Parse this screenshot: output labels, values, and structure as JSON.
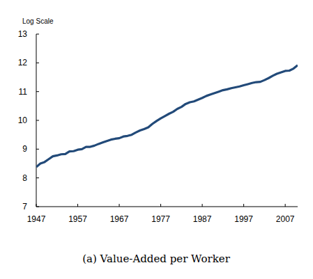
{
  "chart_data": {
    "type": "line",
    "title": "(a) Value-Added per Worker",
    "y_label": "Log Scale",
    "x": [
      1947,
      1948,
      1949,
      1950,
      1951,
      1952,
      1953,
      1954,
      1955,
      1956,
      1957,
      1958,
      1959,
      1960,
      1961,
      1962,
      1963,
      1964,
      1965,
      1966,
      1967,
      1968,
      1969,
      1970,
      1971,
      1972,
      1973,
      1974,
      1975,
      1976,
      1977,
      1978,
      1979,
      1980,
      1981,
      1982,
      1983,
      1984,
      1985,
      1986,
      1987,
      1988,
      1989,
      1990,
      1991,
      1992,
      1993,
      1994,
      1995,
      1996,
      1997,
      1998,
      1999,
      2000,
      2001,
      2002,
      2003,
      2004,
      2005,
      2006,
      2007,
      2008,
      2009,
      2010
    ],
    "values": [
      8.38,
      8.5,
      8.55,
      8.65,
      8.75,
      8.78,
      8.82,
      8.83,
      8.92,
      8.93,
      8.98,
      9.0,
      9.08,
      9.08,
      9.12,
      9.18,
      9.23,
      9.28,
      9.33,
      9.36,
      9.38,
      9.44,
      9.46,
      9.5,
      9.58,
      9.65,
      9.7,
      9.76,
      9.88,
      9.98,
      10.07,
      10.15,
      10.23,
      10.3,
      10.4,
      10.47,
      10.57,
      10.63,
      10.66,
      10.72,
      10.78,
      10.85,
      10.9,
      10.95,
      11.0,
      11.05,
      11.08,
      11.12,
      11.15,
      11.18,
      11.22,
      11.26,
      11.3,
      11.33,
      11.34,
      11.4,
      11.47,
      11.55,
      11.62,
      11.67,
      11.72,
      11.73,
      11.8,
      11.92
    ],
    "color": "#224a79",
    "xlim": [
      1947,
      2010
    ],
    "xticks": [
      1947,
      1957,
      1967,
      1977,
      1987,
      1997,
      2007
    ],
    "ylim": [
      7,
      13
    ],
    "yticks": [
      7,
      8,
      9,
      10,
      11,
      12,
      13
    ],
    "grid": false
  }
}
